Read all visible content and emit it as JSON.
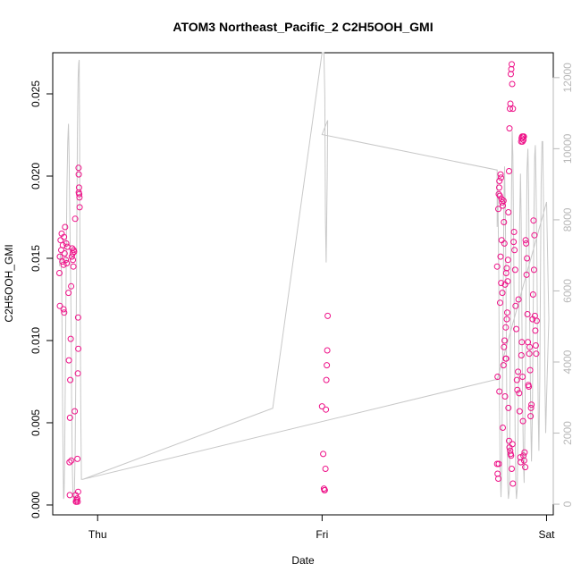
{
  "chart_data": {
    "type": "scatter",
    "title": "ATOM3 Northeast_Pacific_2 C2H5OOH_GMI",
    "xlabel": "Date",
    "ylabel": "C2H5OOH_GMI",
    "x_range_days": [
      -0.2,
      2.03
    ],
    "ylim": [
      -0.0006,
      0.0275
    ],
    "y2lim": [
      -300,
      12700
    ],
    "x_ticks": [
      {
        "label": "Thu",
        "value": 0
      },
      {
        "label": "Fri",
        "value": 1
      },
      {
        "label": "Sat",
        "value": 2
      }
    ],
    "y_ticks": [
      {
        "label": "0.000",
        "value": 0
      },
      {
        "label": "0.005",
        "value": 0.005
      },
      {
        "label": "0.010",
        "value": 0.01
      },
      {
        "label": "0.015",
        "value": 0.015
      },
      {
        "label": "0.020",
        "value": 0.02
      },
      {
        "label": "0.025",
        "value": 0.025
      }
    ],
    "y2_ticks": [
      {
        "label": "0",
        "value": 0
      },
      {
        "label": "2000",
        "value": 2000
      },
      {
        "label": "4000",
        "value": 4000
      },
      {
        "label": "6000",
        "value": 6000
      },
      {
        "label": "8000",
        "value": 8000
      },
      {
        "label": "10000",
        "value": 10000
      },
      {
        "label": "12000",
        "value": 12000
      }
    ],
    "colors": {
      "points": "#ee1188",
      "line": "#c8c8c8",
      "right_axis": "#b8b8b8"
    },
    "series": [
      {
        "role": "points",
        "points": [
          [
            -0.17,
            0.0141
          ],
          [
            -0.168,
            0.0151
          ],
          [
            -0.165,
            0.0161
          ],
          [
            -0.162,
            0.0155
          ],
          [
            -0.16,
            0.0165
          ],
          [
            -0.157,
            0.0148
          ],
          [
            -0.155,
            0.0158
          ],
          [
            -0.152,
            0.0146
          ],
          [
            -0.15,
            0.0163
          ],
          [
            -0.147,
            0.0153
          ],
          [
            -0.145,
            0.0169
          ],
          [
            -0.142,
            0.0149
          ],
          [
            -0.14,
            0.0159
          ],
          [
            -0.138,
            0.0147
          ],
          [
            -0.135,
            0.0157
          ],
          [
            -0.168,
            0.0121
          ],
          [
            -0.152,
            0.0119
          ],
          [
            -0.149,
            0.0117
          ],
          [
            -0.13,
            0.0129
          ],
          [
            -0.128,
            0.0088
          ],
          [
            -0.125,
            0.0026
          ],
          [
            -0.124,
            0.0006
          ],
          [
            -0.122,
            0.0076
          ],
          [
            -0.12,
            0.0101
          ],
          [
            -0.118,
            0.0133
          ],
          [
            -0.123,
            0.0053
          ],
          [
            -0.117,
            0.0027
          ],
          [
            -0.115,
            0.0151
          ],
          [
            -0.113,
            0.0156
          ],
          [
            -0.111,
            0.0153
          ],
          [
            -0.11,
            0.0149
          ],
          [
            -0.108,
            0.0145
          ],
          [
            -0.107,
            0.0155
          ],
          [
            -0.105,
            0.0154
          ],
          [
            -0.102,
            0.0057
          ],
          [
            -0.1,
            0.0174
          ],
          [
            -0.098,
            0.0006
          ],
          [
            -0.097,
            0.0002
          ],
          [
            -0.095,
            0.0002
          ],
          [
            -0.093,
            0.0003
          ],
          [
            -0.091,
            0.0004
          ],
          [
            -0.089,
            0.0002
          ],
          [
            -0.087,
            0.0008
          ],
          [
            -0.09,
            0.0028
          ],
          [
            -0.088,
            0.008
          ],
          [
            -0.087,
            0.0114
          ],
          [
            -0.086,
            0.0095
          ],
          [
            -0.085,
            0.0205
          ],
          [
            -0.084,
            0.0201
          ],
          [
            -0.083,
            0.0193
          ],
          [
            -0.082,
            0.0189
          ],
          [
            -0.081,
            0.0187
          ],
          [
            -0.08,
            0.0181
          ],
          [
            -0.084,
            0.019
          ],
          [
            1.0,
            0.006
          ],
          [
            1.005,
            0.0031
          ],
          [
            1.008,
            0.001
          ],
          [
            1.01,
            0.0009
          ],
          [
            1.012,
            0.0009
          ],
          [
            1.015,
            0.0022
          ],
          [
            1.017,
            0.0058
          ],
          [
            1.019,
            0.0076
          ],
          [
            1.021,
            0.0085
          ],
          [
            1.023,
            0.0094
          ],
          [
            1.025,
            0.0115
          ],
          [
            1.78,
            0.0145
          ],
          [
            1.782,
            0.0078
          ],
          [
            1.785,
            0.018
          ],
          [
            1.787,
            0.0189
          ],
          [
            1.789,
            0.0193
          ],
          [
            1.79,
            0.0197
          ],
          [
            1.792,
            0.0188
          ],
          [
            1.795,
            0.0201
          ],
          [
            1.797,
            0.0199
          ],
          [
            1.8,
            0.0186
          ],
          [
            1.802,
            0.0184
          ],
          [
            1.805,
            0.0182
          ],
          [
            1.808,
            0.0185
          ],
          [
            1.81,
            0.0172
          ],
          [
            1.812,
            0.0159
          ],
          [
            1.815,
            0.0134
          ],
          [
            1.818,
            0.0108
          ],
          [
            1.78,
            0.0025
          ],
          [
            1.782,
            0.0019
          ],
          [
            1.785,
            0.0016
          ],
          [
            1.787,
            0.0025
          ],
          [
            1.79,
            0.0069
          ],
          [
            1.793,
            0.0123
          ],
          [
            1.795,
            0.0151
          ],
          [
            1.798,
            0.0135
          ],
          [
            1.8,
            0.0161
          ],
          [
            1.803,
            0.0129
          ],
          [
            1.805,
            0.0047
          ],
          [
            1.808,
            0.0085
          ],
          [
            1.81,
            0.0096
          ],
          [
            1.813,
            0.01
          ],
          [
            1.815,
            0.0066
          ],
          [
            1.818,
            0.0089
          ],
          [
            1.82,
            0.0089
          ],
          [
            1.823,
            0.0113
          ],
          [
            1.825,
            0.0117
          ],
          [
            1.828,
            0.0149
          ],
          [
            1.83,
            0.0178
          ],
          [
            1.833,
            0.0203
          ],
          [
            1.835,
            0.0229
          ],
          [
            1.837,
            0.0241
          ],
          [
            1.839,
            0.0244
          ],
          [
            1.841,
            0.0262
          ],
          [
            1.843,
            0.0265
          ],
          [
            1.845,
            0.0268
          ],
          [
            1.847,
            0.0256
          ],
          [
            1.85,
            0.0241
          ],
          [
            1.82,
            0.0141
          ],
          [
            1.823,
            0.0144
          ],
          [
            1.827,
            0.0136
          ],
          [
            1.83,
            0.0059
          ],
          [
            1.833,
            0.0039
          ],
          [
            1.835,
            0.0035
          ],
          [
            1.838,
            0.0033
          ],
          [
            1.84,
            0.0031
          ],
          [
            1.842,
            0.003
          ],
          [
            1.845,
            0.0022
          ],
          [
            1.848,
            0.0037
          ],
          [
            1.85,
            0.0013
          ],
          [
            1.853,
            0.016
          ],
          [
            1.855,
            0.0166
          ],
          [
            1.857,
            0.0155
          ],
          [
            1.86,
            0.0143
          ],
          [
            1.862,
            0.0121
          ],
          [
            1.865,
            0.0107
          ],
          [
            1.868,
            0.0076
          ],
          [
            1.87,
            0.007
          ],
          [
            1.873,
            0.0081
          ],
          [
            1.875,
            0.0125
          ],
          [
            1.878,
            0.0068
          ],
          [
            1.88,
            0.0057
          ],
          [
            1.883,
            0.0029
          ],
          [
            1.885,
            0.0026
          ],
          [
            1.887,
            0.0221
          ],
          [
            1.889,
            0.0223
          ],
          [
            1.891,
            0.0224
          ],
          [
            1.893,
            0.0221
          ],
          [
            1.895,
            0.0224
          ],
          [
            1.897,
            0.0222
          ],
          [
            1.899,
            0.0224
          ],
          [
            1.888,
            0.0091
          ],
          [
            1.89,
            0.0099
          ],
          [
            1.893,
            0.0078
          ],
          [
            1.895,
            0.0051
          ],
          [
            1.897,
            0.003
          ],
          [
            1.9,
            0.0027
          ],
          [
            1.902,
            0.0032
          ],
          [
            1.905,
            0.0023
          ],
          [
            1.907,
            0.0161
          ],
          [
            1.909,
            0.0159
          ],
          [
            1.911,
            0.014
          ],
          [
            1.913,
            0.015
          ],
          [
            1.915,
            0.0116
          ],
          [
            1.917,
            0.0099
          ],
          [
            1.919,
            0.0073
          ],
          [
            1.921,
            0.0072
          ],
          [
            1.923,
            0.0092
          ],
          [
            1.925,
            0.0096
          ],
          [
            1.927,
            0.0082
          ],
          [
            1.929,
            0.0054
          ],
          [
            1.931,
            0.0059
          ],
          [
            1.933,
            0.0061
          ],
          [
            1.938,
            0.0113
          ],
          [
            1.94,
            0.0128
          ],
          [
            1.942,
            0.0173
          ],
          [
            1.944,
            0.0143
          ],
          [
            1.946,
            0.0164
          ],
          [
            1.948,
            0.0115
          ],
          [
            1.95,
            0.0106
          ],
          [
            1.952,
            0.0097
          ],
          [
            1.954,
            0.0092
          ],
          [
            1.956,
            0.0112
          ]
        ]
      },
      {
        "role": "line",
        "axis": "right",
        "points": [
          [
            -0.17,
            6700
          ],
          [
            -0.165,
            7100
          ],
          [
            -0.16,
            6300
          ],
          [
            -0.155,
            2000
          ],
          [
            -0.152,
            150
          ],
          [
            -0.15,
            200
          ],
          [
            -0.147,
            1200
          ],
          [
            -0.143,
            4200
          ],
          [
            -0.14,
            6800
          ],
          [
            -0.137,
            8800
          ],
          [
            -0.133,
            10200
          ],
          [
            -0.13,
            10700
          ],
          [
            -0.127,
            9800
          ],
          [
            -0.124,
            8200
          ],
          [
            -0.121,
            6800
          ],
          [
            -0.118,
            5000
          ],
          [
            -0.116,
            3000
          ],
          [
            -0.113,
            1200
          ],
          [
            -0.11,
            250
          ],
          [
            -0.107,
            80
          ],
          [
            -0.104,
            150
          ],
          [
            -0.1,
            1500
          ],
          [
            -0.096,
            4500
          ],
          [
            -0.093,
            7500
          ],
          [
            -0.09,
            10500
          ],
          [
            -0.087,
            12000
          ],
          [
            -0.084,
            12400
          ],
          [
            -0.082,
            12500
          ],
          [
            -0.08,
            10000
          ],
          [
            -0.078,
            6000
          ],
          [
            -0.075,
            2500
          ],
          [
            -0.072,
            700
          ],
          [
            -0.065,
            700
          ],
          [
            0.78,
            2700
          ],
          [
            1.0,
            12700
          ],
          [
            1.008,
            12700
          ],
          [
            1.012,
            11500
          ],
          [
            1.015,
            8000
          ],
          [
            1.018,
            6800
          ],
          [
            1.02,
            7800
          ],
          [
            1.023,
            9200
          ],
          [
            1.025,
            10800
          ],
          [
            1.0,
            10400
          ],
          [
            1.78,
            9400
          ],
          [
            1.78,
            7800
          ],
          [
            1.783,
            8800
          ],
          [
            1.787,
            6500
          ],
          [
            1.79,
            3200
          ],
          [
            1.793,
            1000
          ],
          [
            1.797,
            200
          ],
          [
            1.8,
            900
          ],
          [
            1.803,
            3000
          ],
          [
            1.807,
            6000
          ],
          [
            1.81,
            8500
          ],
          [
            1.813,
            9500
          ],
          [
            1.816,
            8300
          ],
          [
            1.82,
            5500
          ],
          [
            1.823,
            2500
          ],
          [
            1.827,
            600
          ],
          [
            1.83,
            150
          ],
          [
            1.834,
            400
          ],
          [
            1.837,
            2500
          ],
          [
            1.84,
            5800
          ],
          [
            1.844,
            8800
          ],
          [
            1.847,
            10500
          ],
          [
            1.85,
            9800
          ],
          [
            1.853,
            7500
          ],
          [
            1.857,
            4500
          ],
          [
            1.86,
            2000
          ],
          [
            1.863,
            500
          ],
          [
            1.866,
            150
          ],
          [
            1.87,
            500
          ],
          [
            1.873,
            2200
          ],
          [
            1.877,
            5000
          ],
          [
            1.88,
            7800
          ],
          [
            1.884,
            9300
          ],
          [
            1.887,
            8000
          ],
          [
            1.89,
            5500
          ],
          [
            1.893,
            3000
          ],
          [
            1.897,
            1200
          ],
          [
            1.9,
            600
          ],
          [
            1.903,
            2000
          ],
          [
            1.907,
            4500
          ],
          [
            1.91,
            7200
          ],
          [
            1.913,
            9400
          ],
          [
            1.917,
            10000
          ],
          [
            1.92,
            8800
          ],
          [
            1.923,
            6500
          ],
          [
            1.927,
            4000
          ],
          [
            1.93,
            2200
          ],
          [
            1.933,
            1200
          ],
          [
            1.937,
            2500
          ],
          [
            1.94,
            5000
          ],
          [
            1.943,
            7800
          ],
          [
            1.947,
            9800
          ],
          [
            1.95,
            10100
          ],
          [
            1.953,
            9000
          ],
          [
            1.957,
            6800
          ],
          [
            1.96,
            4500
          ],
          [
            1.963,
            2500
          ],
          [
            1.966,
            1500
          ],
          [
            1.97,
            3500
          ],
          [
            1.973,
            6500
          ],
          [
            1.976,
            9000
          ],
          [
            1.98,
            10200
          ],
          [
            1.983,
            10200
          ],
          [
            1.986,
            8500
          ],
          [
            1.99,
            6000
          ],
          [
            1.993,
            3500
          ],
          [
            1.996,
            2000
          ],
          [
            2.0,
            3000
          ],
          [
            2.01,
            5200
          ],
          [
            2.0,
            8500
          ],
          [
            1.78,
            3500
          ],
          [
            1.77,
            3500
          ],
          [
            -0.065,
            700
          ]
        ]
      }
    ]
  }
}
